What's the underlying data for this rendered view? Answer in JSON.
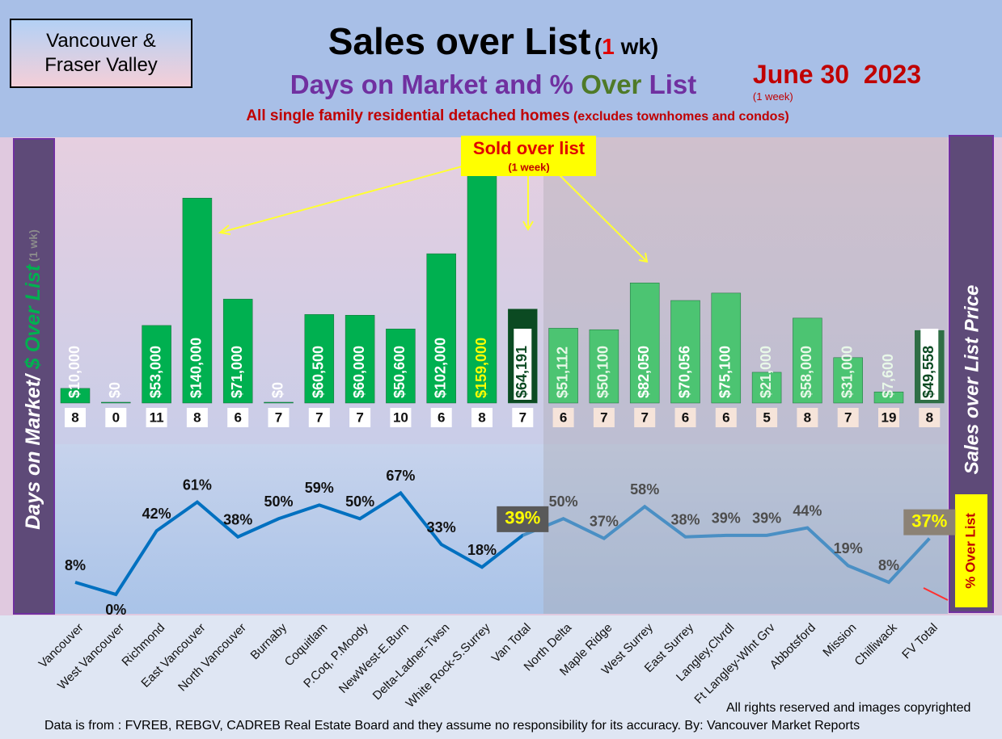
{
  "chart_data": {
    "type": "bar",
    "region": "Vancouver & Fraser Valley",
    "title": "Sales over List",
    "title_note": [
      "(",
      "1",
      " wk)"
    ],
    "date": "June 30  2023",
    "date_note": "(1 week)",
    "subtitle": [
      "Days on Market and % ",
      "Over",
      " List"
    ],
    "description": "All single family residential detached homes",
    "description_note": "(excludes townhomes and condos)",
    "callout": "Sold over list",
    "callout_note": "(1 week)",
    "y_label": [
      "Days on Market/ ",
      "$ Over List",
      " (1 wk)"
    ],
    "y2_label": "Sales over List Price",
    "line_legend": "% Over List",
    "footer_rights": "All rights reserved and  images copyrighted",
    "footer_source": "Data is from : FVREB, REBGV, CADREB Real Estate Board and they assume no responsibility for its accuracy. By: Vancouver Market Reports",
    "categories": [
      "Vancouver",
      "West Vancouver",
      "Richmond",
      "East Vancouver",
      "North Vancouver",
      "Burnaby",
      "Coquitlam",
      "P.Coq, P.Moody",
      "NewWest-E.Burn",
      "Delta-Ladner-Twsn",
      "White Rock-S.Surrey",
      "Van Total",
      "North Delta",
      "Maple Ridge",
      "West Surrey",
      "East Surrey",
      "Langley,Clvrdl",
      "Ft Langley-Wlnt Grv",
      "Abbotsford",
      "Mission",
      "Chilliwack",
      "FV Total"
    ],
    "values": [
      10000,
      0,
      53000,
      140000,
      71000,
      0,
      60500,
      60000,
      50600,
      102000,
      159000,
      64191,
      51112,
      50100,
      82050,
      70056,
      75100,
      21000,
      58000,
      31000,
      7600,
      49558
    ],
    "value_labels": [
      "$10,000",
      "$0",
      "$53,000",
      "$140,000",
      "$71,000",
      "$0",
      "$60,500",
      "$60,000",
      "$50,600",
      "$102,000",
      "$159,000",
      "$64,191",
      "$51,112",
      "$50,100",
      "$82,050",
      "$70,056",
      "$75,100",
      "$21,000",
      "$58,000",
      "$31,000",
      "$7,600",
      "$49,558"
    ],
    "colors": [
      "#00b050",
      "#00b050",
      "#00b050",
      "#00b050",
      "#00b050",
      "#00b050",
      "#00b050",
      "#00b050",
      "#00b050",
      "#00b050",
      "#00b050",
      "#0b4a22",
      "#4cc472",
      "#4cc472",
      "#4cc472",
      "#4cc472",
      "#4cc472",
      "#4cc472",
      "#4cc472",
      "#4cc472",
      "#4cc472",
      "#2f6e45"
    ],
    "ylim": [
      0,
      160000
    ],
    "days_on_market": [
      8,
      0,
      11,
      8,
      6,
      7,
      7,
      7,
      10,
      6,
      8,
      7,
      6,
      7,
      7,
      6,
      6,
      5,
      8,
      7,
      19,
      8
    ],
    "over_list_pct": [
      8,
      0,
      42,
      61,
      38,
      50,
      59,
      50,
      67,
      33,
      18,
      39,
      50,
      37,
      58,
      38,
      39,
      39,
      44,
      19,
      8,
      37
    ],
    "over_list_pct_labels": [
      "8%",
      "0%",
      "42%",
      "61%",
      "38%",
      "50%",
      "59%",
      "50%",
      "67%",
      "33%",
      "18%",
      "39%",
      "50%",
      "37%",
      "58%",
      "38%",
      "39%",
      "39%",
      "44%",
      "19%",
      "8%",
      "37%"
    ],
    "line_colors": [
      "#0070c0",
      "#0070c0",
      "#0070c0",
      "#0070c0",
      "#0070c0",
      "#0070c0",
      "#0070c0",
      "#0070c0",
      "#0070c0",
      "#0070c0",
      "#0070c0",
      "#0070c0",
      "#4a8fc4",
      "#4a8fc4",
      "#4a8fc4",
      "#4a8fc4",
      "#4a8fc4",
      "#4a8fc4",
      "#4a8fc4",
      "#4a8fc4",
      "#4a8fc4",
      "#4a8fc4"
    ],
    "y2lim": [
      0,
      80
    ]
  }
}
